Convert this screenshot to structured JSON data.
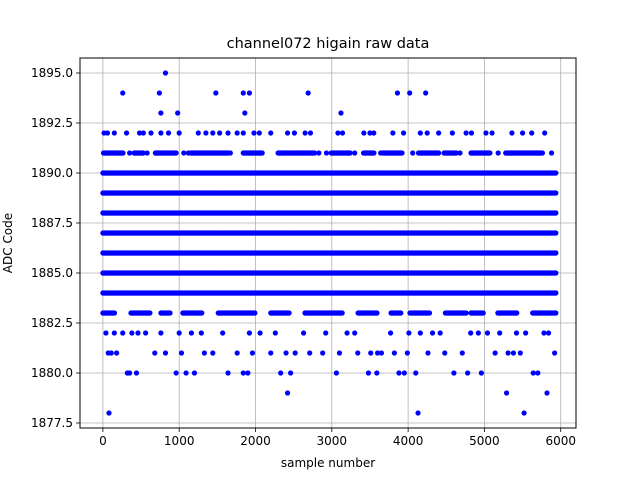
{
  "chart_data": {
    "type": "scatter",
    "title": "channel072 higain raw data",
    "xlabel": "sample number",
    "ylabel": "ADC Code",
    "xlim": [
      -300,
      6200
    ],
    "ylim": [
      1877.25,
      1895.75
    ],
    "xticks": [
      0,
      1000,
      2000,
      3000,
      4000,
      5000,
      6000
    ],
    "xtick_labels": [
      "0",
      "1000",
      "2000",
      "3000",
      "4000",
      "5000",
      "6000"
    ],
    "yticks": [
      1877.5,
      1880.0,
      1882.5,
      1885.0,
      1887.5,
      1890.0,
      1892.5,
      1895.0
    ],
    "ytick_labels": [
      "1877.5",
      "1880.0",
      "1882.5",
      "1885.0",
      "1887.5",
      "1890.0",
      "1892.5",
      "1895.0"
    ],
    "grid": true,
    "marker_color": "#0000ff",
    "series": [
      {
        "name": "",
        "x_range": [
          0,
          5940
        ],
        "dense_levels": [
          1884,
          1885,
          1886,
          1887,
          1888,
          1889,
          1890
        ],
        "sparse_levels": [
          1883,
          1891
        ],
        "scattered_points": [
          [
            15,
            1892
          ],
          [
            60,
            1892
          ],
          [
            90,
            1891
          ],
          [
            150,
            1892
          ],
          [
            240,
            1891
          ],
          [
            310,
            1892
          ],
          [
            350,
            1891
          ],
          [
            420,
            1891
          ],
          [
            480,
            1892
          ],
          [
            530,
            1892
          ],
          [
            580,
            1891
          ],
          [
            630,
            1892
          ],
          [
            700,
            1891
          ],
          [
            760,
            1892
          ],
          [
            860,
            1892
          ],
          [
            960,
            1891
          ],
          [
            1000,
            1892
          ],
          [
            1060,
            1891
          ],
          [
            1120,
            1891
          ],
          [
            1170,
            1891
          ],
          [
            1250,
            1892
          ],
          [
            1350,
            1892
          ],
          [
            1440,
            1892
          ],
          [
            1530,
            1892
          ],
          [
            1640,
            1892
          ],
          [
            1670,
            1891
          ],
          [
            1760,
            1892
          ],
          [
            1840,
            1892
          ],
          [
            1920,
            1891
          ],
          [
            1980,
            1892
          ],
          [
            2050,
            1892
          ],
          [
            2070,
            1891
          ],
          [
            2200,
            1892
          ],
          [
            2320,
            1891
          ],
          [
            2420,
            1892
          ],
          [
            2510,
            1892
          ],
          [
            2540,
            1891
          ],
          [
            2650,
            1892
          ],
          [
            2720,
            1892
          ],
          [
            2830,
            1891
          ],
          [
            2930,
            1891
          ],
          [
            3080,
            1892
          ],
          [
            3140,
            1892
          ],
          [
            3220,
            1891
          ],
          [
            3300,
            1891
          ],
          [
            3420,
            1892
          ],
          [
            3500,
            1892
          ],
          [
            3550,
            1892
          ],
          [
            3640,
            1891
          ],
          [
            3700,
            1891
          ],
          [
            3800,
            1892
          ],
          [
            3850,
            1891
          ],
          [
            3940,
            1892
          ],
          [
            4060,
            1891
          ],
          [
            4160,
            1892
          ],
          [
            4250,
            1892
          ],
          [
            4290,
            1891
          ],
          [
            4400,
            1892
          ],
          [
            4480,
            1891
          ],
          [
            4580,
            1892
          ],
          [
            4680,
            1891
          ],
          [
            4760,
            1892
          ],
          [
            4830,
            1892
          ],
          [
            4930,
            1891
          ],
          [
            5020,
            1892
          ],
          [
            5100,
            1892
          ],
          [
            5180,
            1891
          ],
          [
            5280,
            1891
          ],
          [
            5360,
            1892
          ],
          [
            5500,
            1892
          ],
          [
            5530,
            1891
          ],
          [
            5620,
            1892
          ],
          [
            5720,
            1891
          ],
          [
            5790,
            1892
          ],
          [
            5880,
            1891
          ],
          [
            40,
            1882
          ],
          [
            70,
            1881
          ],
          [
            110,
            1881
          ],
          [
            150,
            1882
          ],
          [
            180,
            1881
          ],
          [
            260,
            1882
          ],
          [
            320,
            1880
          ],
          [
            350,
            1880
          ],
          [
            380,
            1882
          ],
          [
            440,
            1880
          ],
          [
            460,
            1882
          ],
          [
            560,
            1882
          ],
          [
            680,
            1881
          ],
          [
            760,
            1882
          ],
          [
            820,
            1881
          ],
          [
            960,
            1880
          ],
          [
            1000,
            1882
          ],
          [
            1030,
            1881
          ],
          [
            1090,
            1880
          ],
          [
            1160,
            1882
          ],
          [
            1200,
            1880
          ],
          [
            1290,
            1882
          ],
          [
            1330,
            1881
          ],
          [
            1440,
            1881
          ],
          [
            1570,
            1882
          ],
          [
            1640,
            1880
          ],
          [
            1760,
            1881
          ],
          [
            1840,
            1880
          ],
          [
            1900,
            1880
          ],
          [
            1920,
            1882
          ],
          [
            1960,
            1881
          ],
          [
            2060,
            1882
          ],
          [
            2200,
            1881
          ],
          [
            2260,
            1882
          ],
          [
            2330,
            1880
          ],
          [
            2400,
            1881
          ],
          [
            2460,
            1880
          ],
          [
            2520,
            1881
          ],
          [
            2630,
            1882
          ],
          [
            2710,
            1881
          ],
          [
            2880,
            1881
          ],
          [
            2920,
            1882
          ],
          [
            3060,
            1880
          ],
          [
            3100,
            1881
          ],
          [
            3200,
            1882
          ],
          [
            3300,
            1882
          ],
          [
            3340,
            1881
          ],
          [
            3480,
            1880
          ],
          [
            3510,
            1881
          ],
          [
            3590,
            1880
          ],
          [
            3600,
            1881
          ],
          [
            3650,
            1881
          ],
          [
            3770,
            1882
          ],
          [
            3820,
            1881
          ],
          [
            3880,
            1880
          ],
          [
            3950,
            1880
          ],
          [
            3990,
            1881
          ],
          [
            4010,
            1882
          ],
          [
            4100,
            1880
          ],
          [
            4160,
            1882
          ],
          [
            4260,
            1881
          ],
          [
            4320,
            1882
          ],
          [
            4420,
            1882
          ],
          [
            4480,
            1881
          ],
          [
            4600,
            1880
          ],
          [
            4710,
            1881
          ],
          [
            4780,
            1880
          ],
          [
            4820,
            1882
          ],
          [
            4920,
            1882
          ],
          [
            4960,
            1880
          ],
          [
            5040,
            1882
          ],
          [
            5140,
            1881
          ],
          [
            5200,
            1882
          ],
          [
            5310,
            1881
          ],
          [
            5380,
            1881
          ],
          [
            5420,
            1882
          ],
          [
            5470,
            1881
          ],
          [
            5540,
            1882
          ],
          [
            5640,
            1880
          ],
          [
            5700,
            1880
          ],
          [
            5780,
            1882
          ],
          [
            5840,
            1882
          ],
          [
            5920,
            1881
          ],
          [
            260,
            1894
          ],
          [
            740,
            1894
          ],
          [
            760,
            1893
          ],
          [
            820,
            1895
          ],
          [
            980,
            1893
          ],
          [
            1480,
            1894
          ],
          [
            1840,
            1894
          ],
          [
            1860,
            1893
          ],
          [
            1920,
            1894
          ],
          [
            2690,
            1894
          ],
          [
            3120,
            1893
          ],
          [
            3860,
            1894
          ],
          [
            4020,
            1894
          ],
          [
            4230,
            1894
          ],
          [
            80,
            1878
          ],
          [
            2420,
            1879
          ],
          [
            4130,
            1878
          ],
          [
            5290,
            1879
          ],
          [
            5520,
            1878
          ],
          [
            5820,
            1879
          ]
        ]
      }
    ]
  }
}
